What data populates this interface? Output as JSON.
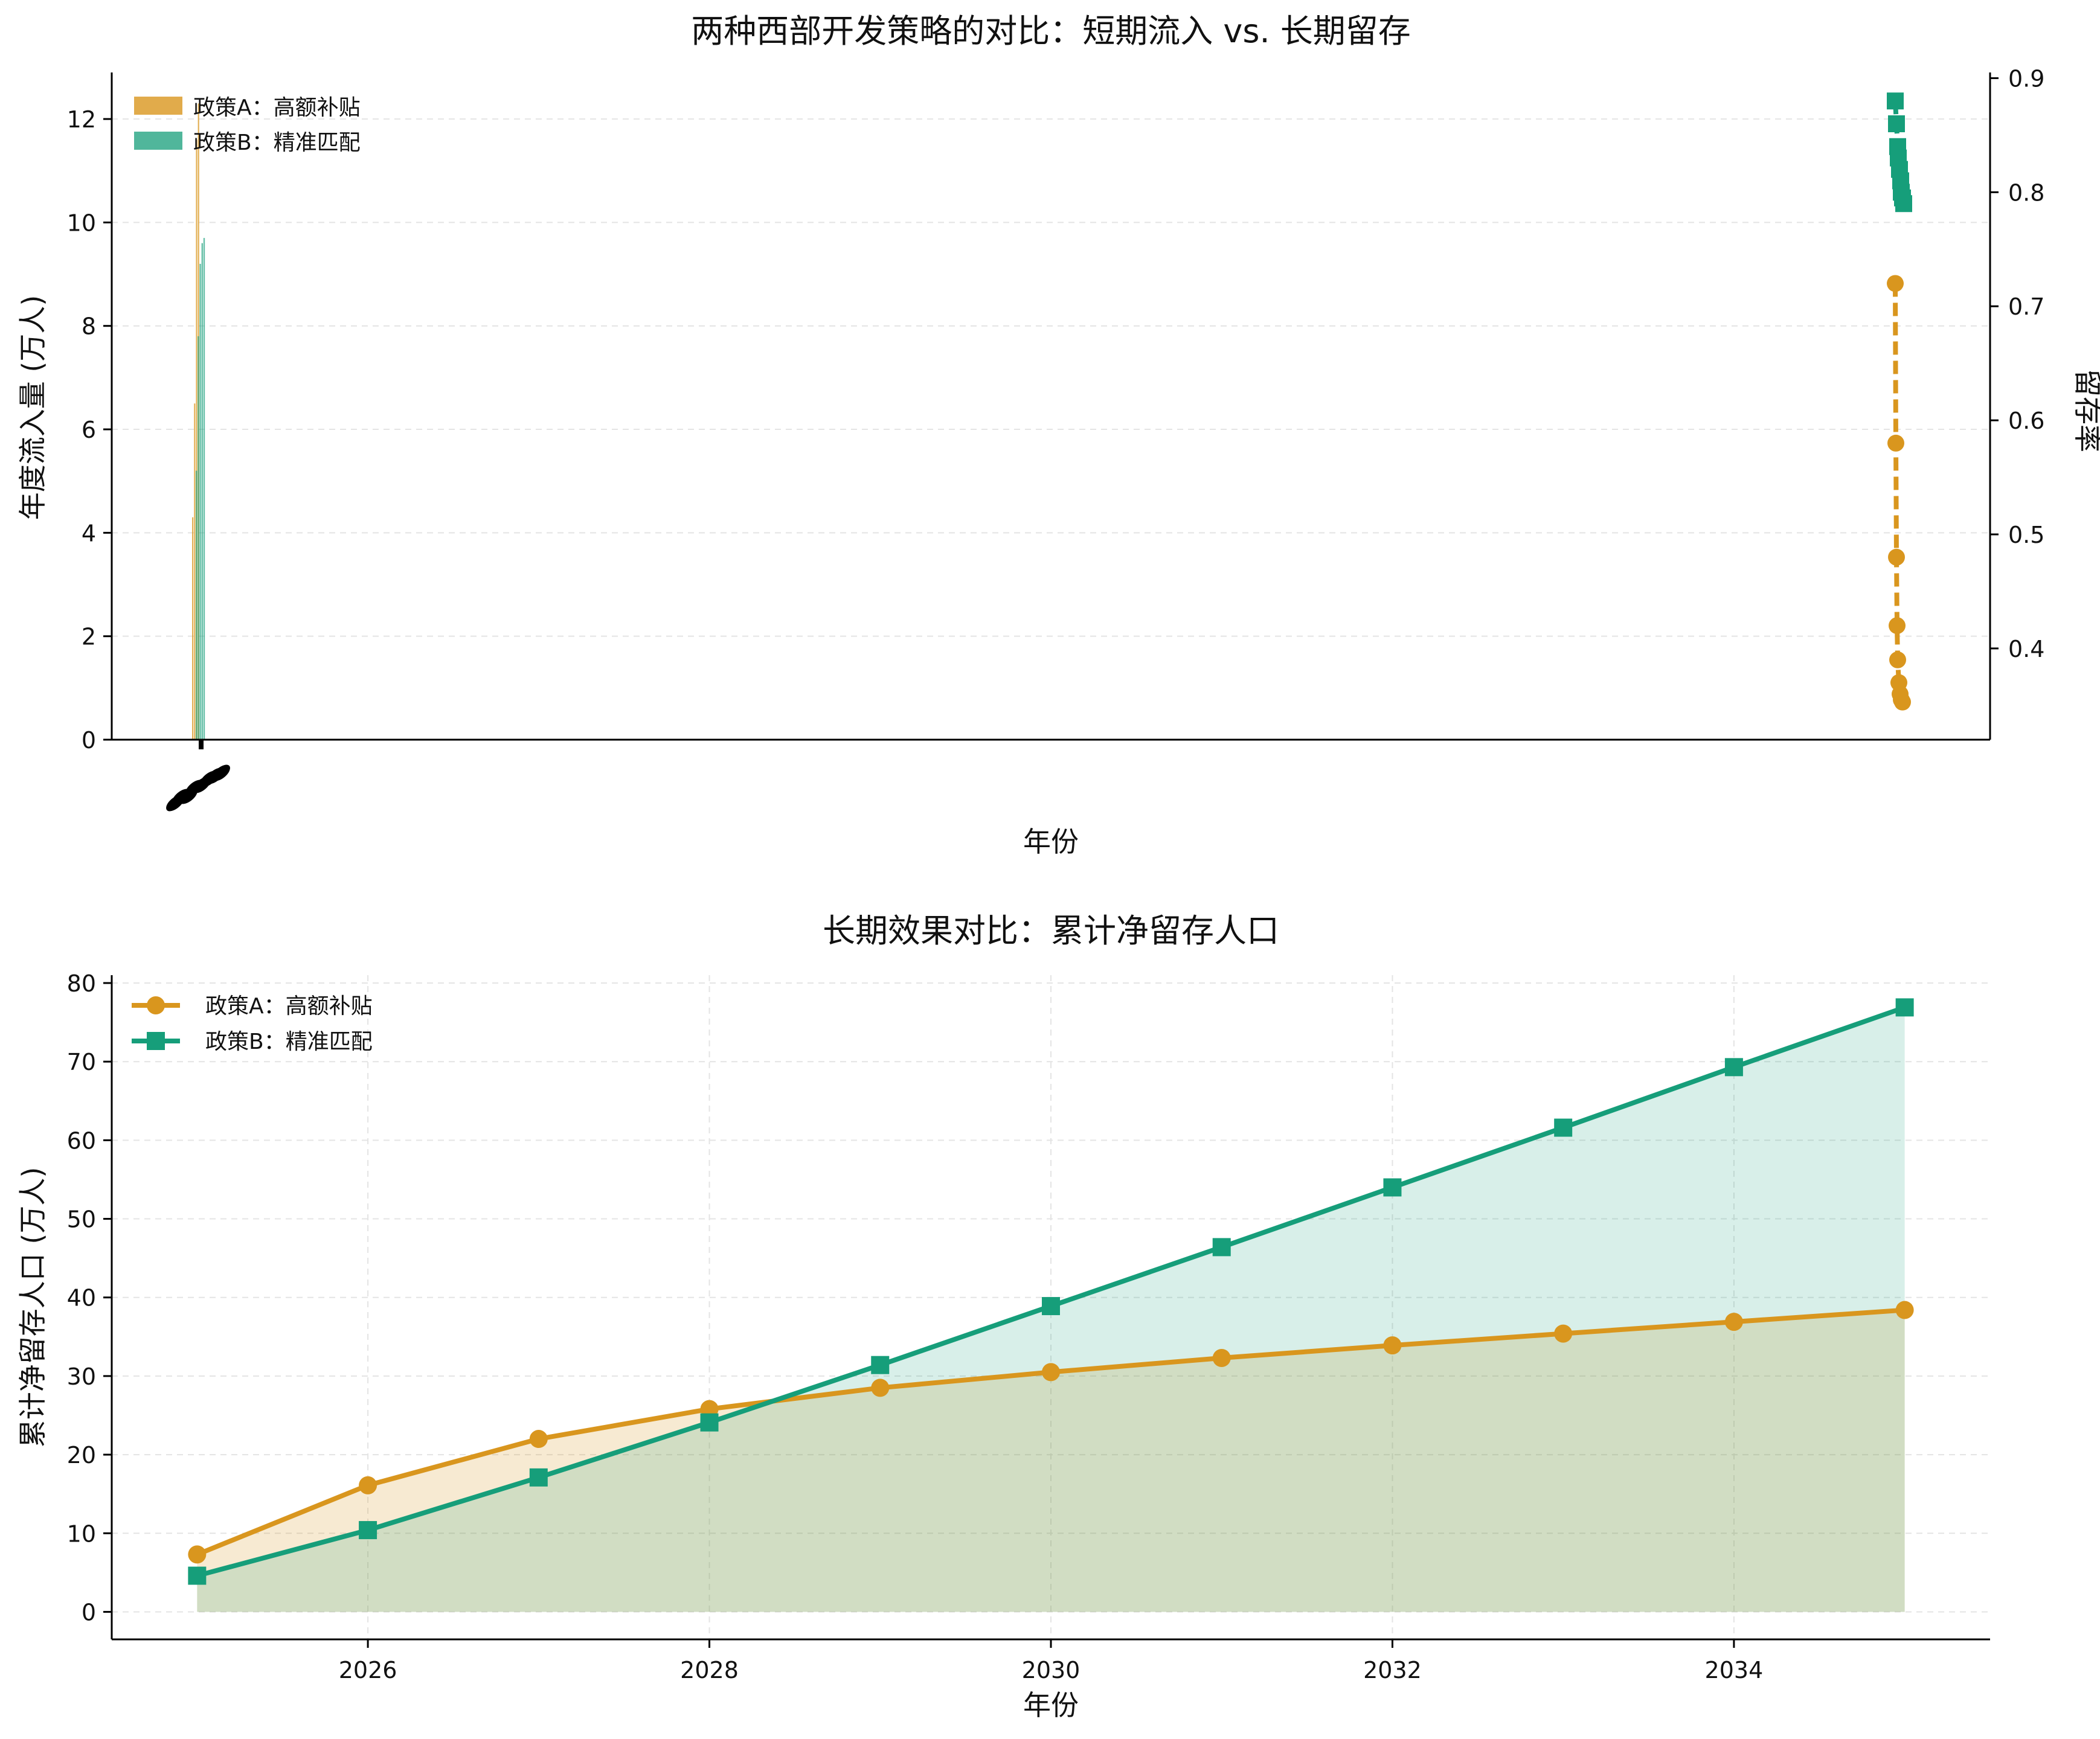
{
  "colors": {
    "policy_a": "#d9961e",
    "policy_b": "#169e7a",
    "fill_a": "#fbebd0",
    "fill_b": "#d4efe6",
    "fill_overlap": "#d4e0c7"
  },
  "chart_data": [
    {
      "type": "bar",
      "title": "两种西部开发策略的对比：短期流入 vs. 长期留存",
      "xlabel": "年份",
      "ylabel": "年度流入量 (万人)",
      "y2label": "留存率",
      "ylim": [
        0,
        12.9
      ],
      "y2lim": [
        0.32,
        0.905
      ],
      "yticks": [
        0,
        2,
        4,
        6,
        8,
        10,
        12
      ],
      "y2ticks": [
        "0.4",
        "0.5",
        "0.6",
        "0.7",
        "0.8",
        "0.9"
      ],
      "grid": true,
      "legend_position": "top-left",
      "bar_series": [
        {
          "name": "政策A：高额补贴",
          "values": [
            4.3,
            6.5,
            11.6,
            12.3
          ]
        },
        {
          "name": "政策B：精准匹配",
          "values": [
            5.2,
            7.8,
            9.2,
            9.6,
            9.7
          ]
        }
      ],
      "line_series": [
        {
          "series": "A",
          "values": [
            0.72,
            0.58,
            0.48,
            0.42,
            0.39,
            0.37,
            0.36,
            0.355,
            0.353
          ]
        },
        {
          "series": "B",
          "values": [
            0.88,
            0.86,
            0.84,
            0.83,
            0.82,
            0.81,
            0.8,
            0.795,
            0.79
          ]
        }
      ]
    },
    {
      "type": "line",
      "title": "长期效果对比：累计净留存人口",
      "xlabel": "年份",
      "ylabel": "累计净留存人口 (万人)",
      "x": [
        2025,
        2026,
        2027,
        2028,
        2029,
        2030,
        2031,
        2032,
        2033,
        2034,
        2035
      ],
      "xlim": [
        2024.5,
        2035.5
      ],
      "ylim": [
        -3.5,
        81
      ],
      "xticks": [
        "2026",
        "2028",
        "2030",
        "2032",
        "2034"
      ],
      "yticks": [
        "0",
        "10",
        "20",
        "30",
        "40",
        "50",
        "60",
        "70",
        "80"
      ],
      "grid": true,
      "legend_position": "top-left",
      "series": [
        {
          "name": "政策A：高额补贴",
          "values": [
            7.3,
            16.1,
            22.0,
            25.8,
            28.5,
            30.5,
            32.3,
            33.9,
            35.4,
            36.9,
            38.4
          ]
        },
        {
          "name": "政策B：精准匹配",
          "values": [
            4.6,
            10.4,
            17.1,
            24.1,
            31.4,
            38.9,
            46.4,
            54.0,
            61.6,
            69.3,
            76.9
          ]
        }
      ]
    }
  ]
}
